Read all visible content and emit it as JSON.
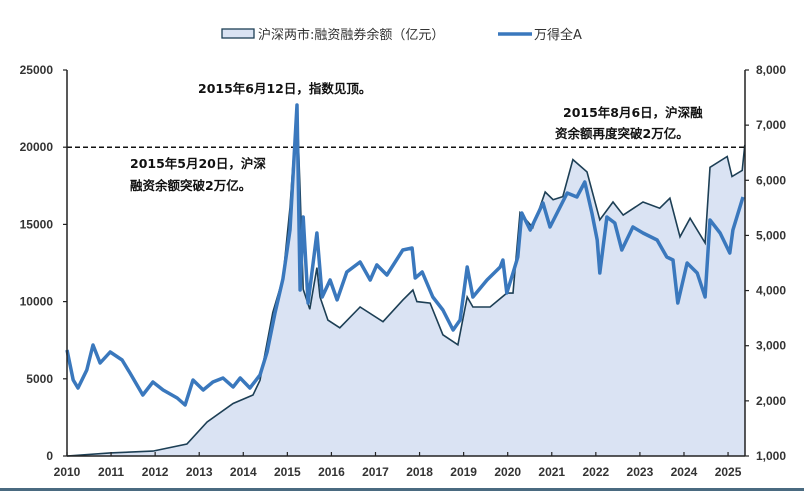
{
  "chart_data": {
    "type": "line",
    "title": "",
    "legend_position": "top",
    "grid": false,
    "x_ticks": [
      "2010",
      "2011",
      "2012",
      "2013",
      "2014",
      "2015",
      "2016",
      "2017",
      "2018",
      "2019",
      "2020",
      "2021",
      "2022",
      "2023",
      "2024",
      "2025"
    ],
    "xlim": [
      2010,
      2025.38
    ],
    "left_axis": {
      "ylim": [
        0,
        25000
      ],
      "ticks": [
        "0",
        "5000",
        "10000",
        "15000",
        "20000",
        "25000"
      ]
    },
    "right_axis": {
      "ylim": [
        1000,
        8000
      ],
      "ticks": [
        "1,000",
        "2,000",
        "3,000",
        "4,000",
        "5,000",
        "6,000",
        "7,000",
        "8,000"
      ]
    },
    "reference_line": {
      "axis": "left",
      "value": 20000,
      "style": "dashed"
    },
    "series": [
      {
        "name": "沪深两市:融资融券余额（亿元）",
        "kind": "area",
        "axis": "left",
        "color_fill": "#dae3f3",
        "color_line": "#1d3f55",
        "points": [
          [
            2010.0,
            0
          ],
          [
            2010.98,
            200
          ],
          [
            2011.95,
            320
          ],
          [
            2012.72,
            780
          ],
          [
            2013.18,
            2200
          ],
          [
            2013.77,
            3400
          ],
          [
            2014.22,
            3950
          ],
          [
            2014.38,
            4900
          ],
          [
            2014.67,
            9300
          ],
          [
            2014.9,
            11500
          ],
          [
            2015.06,
            16100
          ],
          [
            2015.22,
            22700
          ],
          [
            2015.29,
            17200
          ],
          [
            2015.36,
            10800
          ],
          [
            2015.51,
            9500
          ],
          [
            2015.67,
            12200
          ],
          [
            2015.74,
            10300
          ],
          [
            2015.92,
            8800
          ],
          [
            2016.19,
            8300
          ],
          [
            2016.65,
            9650
          ],
          [
            2017.17,
            8700
          ],
          [
            2017.62,
            10100
          ],
          [
            2017.85,
            10750
          ],
          [
            2017.94,
            10000
          ],
          [
            2018.24,
            9900
          ],
          [
            2018.53,
            7850
          ],
          [
            2018.87,
            7200
          ],
          [
            2019.08,
            10300
          ],
          [
            2019.21,
            9650
          ],
          [
            2019.6,
            9650
          ],
          [
            2019.98,
            10550
          ],
          [
            2020.12,
            10550
          ],
          [
            2020.28,
            15750
          ],
          [
            2020.57,
            14800
          ],
          [
            2020.85,
            17100
          ],
          [
            2021.03,
            16600
          ],
          [
            2021.25,
            16800
          ],
          [
            2021.48,
            19200
          ],
          [
            2021.8,
            18400
          ],
          [
            2022.09,
            15300
          ],
          [
            2022.39,
            16450
          ],
          [
            2022.62,
            15600
          ],
          [
            2023.07,
            16450
          ],
          [
            2023.45,
            16050
          ],
          [
            2023.68,
            16700
          ],
          [
            2023.91,
            14200
          ],
          [
            2024.14,
            15400
          ],
          [
            2024.48,
            13800
          ],
          [
            2024.59,
            18700
          ],
          [
            2024.98,
            19400
          ],
          [
            2025.09,
            18100
          ],
          [
            2025.32,
            18500
          ],
          [
            2025.38,
            20150
          ]
        ]
      },
      {
        "name": "万得全A",
        "kind": "line",
        "axis": "right",
        "color_line": "#3a78bd",
        "points": [
          [
            2010.0,
            2922
          ],
          [
            2010.14,
            2378
          ],
          [
            2010.25,
            2233
          ],
          [
            2010.45,
            2560
          ],
          [
            2010.59,
            3013
          ],
          [
            2010.75,
            2686
          ],
          [
            2010.98,
            2886
          ],
          [
            2011.25,
            2741
          ],
          [
            2011.43,
            2505
          ],
          [
            2011.72,
            2106
          ],
          [
            2011.95,
            2342
          ],
          [
            2012.18,
            2197
          ],
          [
            2012.5,
            2052
          ],
          [
            2012.68,
            1925
          ],
          [
            2012.86,
            2378
          ],
          [
            2013.09,
            2197
          ],
          [
            2013.31,
            2342
          ],
          [
            2013.54,
            2414
          ],
          [
            2013.77,
            2251
          ],
          [
            2013.93,
            2414
          ],
          [
            2014.15,
            2233
          ],
          [
            2014.38,
            2469
          ],
          [
            2014.54,
            2886
          ],
          [
            2014.72,
            3593
          ],
          [
            2014.9,
            4210
          ],
          [
            2015.06,
            5098
          ],
          [
            2015.22,
            7366
          ],
          [
            2015.29,
            4010
          ],
          [
            2015.36,
            5334
          ],
          [
            2015.47,
            3775
          ],
          [
            2015.67,
            5044
          ],
          [
            2015.79,
            3884
          ],
          [
            2015.97,
            4192
          ],
          [
            2016.13,
            3830
          ],
          [
            2016.35,
            4337
          ],
          [
            2016.65,
            4518
          ],
          [
            2016.88,
            4192
          ],
          [
            2017.03,
            4465
          ],
          [
            2017.26,
            4283
          ],
          [
            2017.62,
            4736
          ],
          [
            2017.83,
            4772
          ],
          [
            2017.9,
            4228
          ],
          [
            2018.06,
            4337
          ],
          [
            2018.3,
            3884
          ],
          [
            2018.53,
            3648
          ],
          [
            2018.76,
            3285
          ],
          [
            2018.92,
            3467
          ],
          [
            2019.08,
            4428
          ],
          [
            2019.21,
            3884
          ],
          [
            2019.53,
            4192
          ],
          [
            2019.83,
            4428
          ],
          [
            2019.89,
            4555
          ],
          [
            2019.98,
            3956
          ],
          [
            2020.12,
            4319
          ],
          [
            2020.23,
            4609
          ],
          [
            2020.32,
            5407
          ],
          [
            2020.51,
            5098
          ],
          [
            2020.8,
            5588
          ],
          [
            2020.96,
            5153
          ],
          [
            2021.35,
            5769
          ],
          [
            2021.57,
            5697
          ],
          [
            2021.75,
            5969
          ],
          [
            2021.91,
            5407
          ],
          [
            2022.03,
            4917
          ],
          [
            2022.09,
            4319
          ],
          [
            2022.25,
            5334
          ],
          [
            2022.43,
            5225
          ],
          [
            2022.59,
            4736
          ],
          [
            2022.84,
            5153
          ],
          [
            2023.07,
            5044
          ],
          [
            2023.39,
            4917
          ],
          [
            2023.61,
            4609
          ],
          [
            2023.75,
            4555
          ],
          [
            2023.86,
            3775
          ],
          [
            2024.07,
            4500
          ],
          [
            2024.3,
            4319
          ],
          [
            2024.48,
            3884
          ],
          [
            2024.59,
            5280
          ],
          [
            2024.82,
            5044
          ],
          [
            2025.04,
            4681
          ],
          [
            2025.11,
            5098
          ],
          [
            2025.34,
            5697
          ]
        ]
      }
    ],
    "annotations": {
      "peak": "2015年6月12日，指数见顶。",
      "first_2tn_line1": "2015年5月20日，沪深",
      "first_2tn_line2": "融资余额突破2万亿。",
      "second_2tn_line1": "2015年8月6日，沪深融",
      "second_2tn_line2": "资余额再度突破2万亿。"
    }
  }
}
